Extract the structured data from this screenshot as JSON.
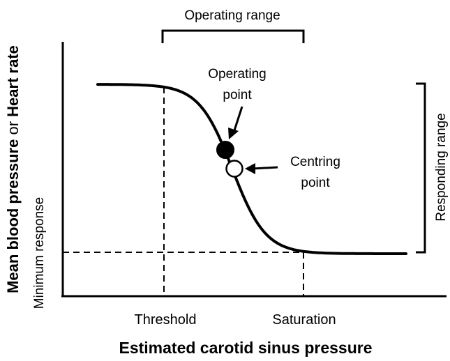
{
  "diagram": {
    "operating_range_label": "Operating range",
    "operating_point_line1": "Operating",
    "operating_point_line2": "point",
    "centring_point_line1": "Centring",
    "centring_point_line2": "point",
    "responding_range_label": "Responding range",
    "minimum_response_label": "Minimum response",
    "threshold_label": "Threshold",
    "saturation_label": "Saturation",
    "x_axis_label": "Estimated carotid sinus pressure",
    "y_axis_label_bold_1": "Mean blood pressure",
    "y_axis_label_plain": " or ",
    "y_axis_label_bold_2": "Heart rate"
  },
  "colors": {
    "ink": "#000000",
    "background": "#ffffff",
    "operating_point_fill": "#000000",
    "centring_point_fill": "#ffffff"
  }
}
